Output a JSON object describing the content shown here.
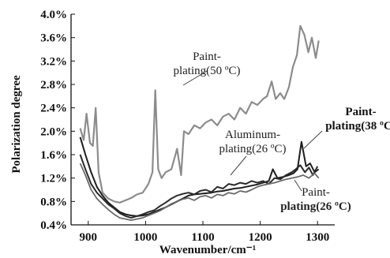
{
  "chart_data": {
    "type": "line",
    "xlabel": "Wavenumber/cm⁻¹",
    "ylabel": "Polarization degree",
    "xlim": [
      870,
      1330
    ],
    "ylim": [
      0.4,
      4.0
    ],
    "x_ticks": [
      "900",
      "1000",
      "1100",
      "1200",
      "1300"
    ],
    "y_ticks": [
      "0.4%",
      "0.8%",
      "1.2%",
      "1.6%",
      "2.0%",
      "2.4%",
      "2.8%",
      "3.2%",
      "3.6%",
      "4.0%"
    ],
    "grid": false,
    "annotations": [
      {
        "lines": [
          "Paint-",
          "plating(50 ºC)"
        ],
        "style": "normal",
        "series": 0
      },
      {
        "lines": [
          "Aluminum-",
          "plating(26 ºC)"
        ],
        "style": "normal",
        "series": 1
      },
      {
        "lines": [
          "Paint-",
          "plating(38 ºC)"
        ],
        "style": "bold",
        "series": 2
      },
      {
        "lines": [
          "Paint-",
          "plating(26 ºC)"
        ],
        "style": "mixed",
        "series": 3
      }
    ],
    "series": [
      {
        "color": "#8c8c8c",
        "width": 2.2,
        "x": [
          886,
          892,
          897,
          903,
          908,
          913,
          918,
          925,
          935,
          945,
          955,
          965,
          975,
          985,
          995,
          1005,
          1012,
          1017,
          1022,
          1028,
          1035,
          1045,
          1055,
          1062,
          1067,
          1075,
          1085,
          1095,
          1105,
          1115,
          1125,
          1135,
          1145,
          1155,
          1165,
          1175,
          1185,
          1195,
          1205,
          1212,
          1220,
          1227,
          1235,
          1242,
          1250,
          1257,
          1264,
          1270,
          1277,
          1284,
          1290,
          1297,
          1302
        ],
        "y": [
          2.05,
          1.85,
          2.3,
          1.8,
          1.75,
          2.4,
          1.3,
          0.95,
          0.85,
          0.8,
          0.78,
          0.82,
          0.86,
          0.92,
          0.95,
          1.1,
          1.3,
          2.7,
          1.35,
          1.2,
          1.3,
          1.35,
          1.7,
          1.25,
          2.0,
          1.95,
          2.1,
          2.05,
          2.15,
          2.2,
          2.1,
          2.25,
          2.3,
          2.2,
          2.4,
          2.3,
          2.5,
          2.45,
          2.55,
          2.6,
          2.85,
          2.55,
          2.65,
          2.55,
          2.75,
          3.1,
          3.3,
          3.8,
          3.65,
          3.35,
          3.6,
          3.25,
          3.55
        ]
      },
      {
        "color": "#1e1e1e",
        "width": 2.0,
        "x": [
          886,
          895,
          905,
          915,
          925,
          935,
          945,
          955,
          965,
          975,
          985,
          995,
          1005,
          1015,
          1025,
          1035,
          1045,
          1055,
          1065,
          1075,
          1085,
          1095,
          1105,
          1115,
          1125,
          1135,
          1145,
          1155,
          1165,
          1175,
          1185,
          1195,
          1205,
          1215,
          1222,
          1230,
          1240,
          1250,
          1258,
          1265,
          1272,
          1280,
          1287,
          1295,
          1302
        ],
        "y": [
          1.9,
          1.6,
          1.3,
          1.05,
          0.9,
          0.78,
          0.7,
          0.62,
          0.58,
          0.56,
          0.55,
          0.56,
          0.58,
          0.62,
          0.66,
          0.7,
          0.75,
          0.8,
          0.85,
          0.9,
          0.92,
          0.93,
          0.94,
          0.95,
          0.97,
          0.98,
          1.0,
          1.02,
          1.03,
          1.05,
          1.07,
          1.09,
          1.12,
          1.15,
          1.35,
          1.2,
          1.22,
          1.25,
          1.28,
          1.35,
          1.82,
          1.4,
          1.45,
          1.3,
          1.35
        ]
      },
      {
        "color": "#2a2a2a",
        "width": 2.0,
        "x": [
          886,
          895,
          905,
          915,
          925,
          935,
          945,
          955,
          965,
          975,
          985,
          995,
          1005,
          1015,
          1025,
          1035,
          1045,
          1055,
          1065,
          1075,
          1085,
          1095,
          1105,
          1115,
          1125,
          1135,
          1145,
          1155,
          1165,
          1175,
          1185,
          1195,
          1205,
          1215,
          1225,
          1235,
          1245,
          1255,
          1262,
          1270,
          1278,
          1285,
          1292,
          1300
        ],
        "y": [
          1.6,
          1.35,
          1.1,
          0.95,
          0.85,
          0.75,
          0.68,
          0.6,
          0.55,
          0.52,
          0.55,
          0.58,
          0.62,
          0.65,
          0.72,
          0.78,
          0.85,
          0.9,
          0.93,
          0.95,
          0.92,
          0.98,
          1.0,
          0.96,
          1.05,
          1.02,
          1.1,
          1.08,
          1.12,
          1.1,
          1.15,
          1.12,
          1.15,
          1.1,
          1.2,
          1.18,
          1.25,
          1.3,
          1.35,
          1.42,
          1.3,
          1.38,
          1.25,
          1.4
        ]
      },
      {
        "color": "#6a6a6a",
        "width": 1.8,
        "x": [
          886,
          895,
          905,
          915,
          925,
          935,
          945,
          955,
          965,
          975,
          985,
          995,
          1005,
          1015,
          1025,
          1035,
          1045,
          1055,
          1065,
          1075,
          1085,
          1095,
          1105,
          1115,
          1125,
          1135,
          1145,
          1155,
          1165,
          1175,
          1185,
          1195,
          1205,
          1215,
          1225,
          1235,
          1245,
          1255,
          1265,
          1275,
          1285,
          1295,
          1302
        ],
        "y": [
          1.45,
          1.25,
          1.0,
          0.85,
          0.75,
          0.66,
          0.58,
          0.52,
          0.5,
          0.48,
          0.5,
          0.52,
          0.56,
          0.6,
          0.64,
          0.7,
          0.76,
          0.8,
          0.84,
          0.86,
          0.82,
          0.88,
          0.9,
          0.86,
          0.92,
          0.9,
          0.95,
          0.93,
          0.98,
          0.96,
          1.0,
          1.05,
          1.08,
          1.1,
          1.12,
          1.15,
          1.18,
          1.2,
          1.22,
          1.25,
          1.2,
          1.28,
          1.2
        ]
      }
    ]
  }
}
